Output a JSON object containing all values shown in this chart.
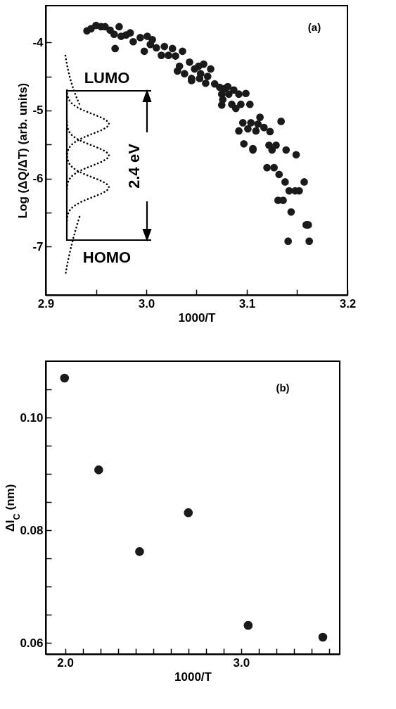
{
  "chart_data": [
    {
      "type": "scatter",
      "xlabel": "1000/T",
      "ylabel": "Log (ΔQ/ΔT) (arb. units)",
      "marker": "circle",
      "xlim": [
        2.9,
        3.2
      ],
      "ylim": [
        -7.71,
        -3.46
      ],
      "xticks": [
        2.9,
        {
          "value": 2.95,
          "label": null
        },
        {
          "value": 3,
          "label": "3.0"
        },
        {
          "value": 3.05,
          "label": null
        },
        3.1,
        {
          "value": 3.15,
          "label": null
        },
        3.2
      ],
      "yticks": [
        -7,
        {
          "value": -6.5,
          "label": null
        },
        -6,
        {
          "value": -5.5,
          "label": null
        },
        -5,
        {
          "value": -4.5,
          "label": null
        },
        -4
      ],
      "annotations": [
        "(a)",
        "LUMO",
        "2.4 eV",
        "HOMO"
      ],
      "series": [
        {
          "color": "#1a1a1a",
          "x": [
            2.941,
            2.945,
            2.95,
            2.955,
            2.959,
            2.964,
            2.968,
            2.973,
            2.969,
            2.975,
            2.98,
            2.984,
            2.987,
            2.994,
            2.998,
            3.001,
            3.004,
            3.006,
            3.01,
            3.015,
            3.018,
            3.022,
            3.026,
            3.029,
            3.036,
            3.033,
            3.031,
            3.038,
            3.043,
            3.045,
            3.048,
            3.052,
            3.057,
            3.054,
            3.059,
            3.061,
            3.064,
            3.068,
            3.073,
            3.075,
            3.078,
            3.082,
            3.087,
            3.085,
            3.089,
            3.092,
            3.094,
            3.099,
            3.103,
            3.096,
            3.092,
            3.101,
            3.104,
            3.097,
            3.106,
            3.045,
            3.053,
            3.076,
            3.075,
            3.081,
            3.113,
            3.109,
            3.111,
            3.117,
            3.123,
            3.134,
            3.106,
            3.122,
            3.125,
            3.129,
            3.139,
            3.149,
            3.12,
            3.127,
            3.132,
            3.138,
            3.157,
            3.142,
            3.148,
            3.152,
            3.131,
            3.136,
            3.144,
            3.159,
            3.161,
            3.141,
            3.162
          ],
          "values": [
            -3.83,
            -3.8,
            -3.75,
            -3.77,
            -3.77,
            -3.82,
            -3.88,
            -3.77,
            -4.09,
            -3.91,
            -3.89,
            -3.86,
            -3.99,
            -3.93,
            -4.13,
            -3.91,
            -4.03,
            -3.96,
            -4.08,
            -4.19,
            -4.06,
            -4.19,
            -4.09,
            -4.2,
            -4.13,
            -4.35,
            -4.42,
            -4.46,
            -4.29,
            -4.53,
            -4.39,
            -4.35,
            -4.32,
            -4.46,
            -4.6,
            -4.5,
            -4.39,
            -4.61,
            -4.66,
            -4.76,
            -4.68,
            -4.76,
            -4.7,
            -4.91,
            -4.97,
            -4.76,
            -4.91,
            -4.75,
            -4.91,
            -5.18,
            -5.3,
            -5.27,
            -5.18,
            -5.49,
            -5.56,
            -4.56,
            -4.53,
            -4.84,
            -4.92,
            -4.65,
            -5.1,
            -5.3,
            -5.2,
            -5.25,
            -5.31,
            -5.16,
            -5.58,
            -5.51,
            -5.58,
            -5.51,
            -5.58,
            -5.65,
            -5.84,
            -5.84,
            -5.94,
            -6.05,
            -6.05,
            -6.18,
            -6.18,
            -6.18,
            -6.32,
            -6.32,
            -6.49,
            -6.68,
            -6.68,
            -6.92,
            -6.92
          ]
        }
      ]
    },
    {
      "type": "scatter",
      "xlabel": "1000/T",
      "ylabel": "ΔI$_{C}$ (nm)",
      "marker": "circle",
      "xlim": [
        1.89,
        3.56
      ],
      "ylim": [
        0.058,
        0.11
      ],
      "xticks": [
        {
          "value": 2,
          "label": "2.0"
        },
        {
          "value": 2.1,
          "label": null
        },
        {
          "value": 2.2,
          "label": null
        },
        {
          "value": 2.3,
          "label": null
        },
        {
          "value": 2.4,
          "label": null
        },
        {
          "value": 2.5,
          "label": null
        },
        {
          "value": 2.6,
          "label": null
        },
        {
          "value": 2.7,
          "label": null
        },
        {
          "value": 2.8,
          "label": null
        },
        {
          "value": 2.9,
          "label": null
        },
        {
          "value": 3,
          "label": "3.0"
        },
        {
          "value": 3.1,
          "label": null
        },
        {
          "value": 3.2,
          "label": null
        },
        {
          "value": 3.3,
          "label": null
        },
        {
          "value": 3.4,
          "label": null
        },
        {
          "value": 3.5,
          "label": null
        }
      ],
      "yticks": [
        0.06,
        {
          "value": 0.065,
          "label": null
        },
        {
          "value": 0.07,
          "label": null
        },
        {
          "value": 0.075,
          "label": null
        },
        0.08,
        {
          "value": 0.085,
          "label": null
        },
        {
          "value": 0.09,
          "label": null
        },
        {
          "value": 0.095,
          "label": null
        },
        {
          "value": 0.1,
          "label": "0.10"
        },
        {
          "value": 0.105,
          "label": null
        }
      ],
      "annotations": [
        "(b)"
      ],
      "series": [
        {
          "color": "#1a1a1a",
          "x": [
            1.997,
            2.191,
            2.423,
            2.7,
            3.04,
            3.464
          ],
          "values": [
            0.107,
            0.0907,
            0.0762,
            0.0831,
            0.0631,
            0.061
          ]
        }
      ]
    }
  ]
}
